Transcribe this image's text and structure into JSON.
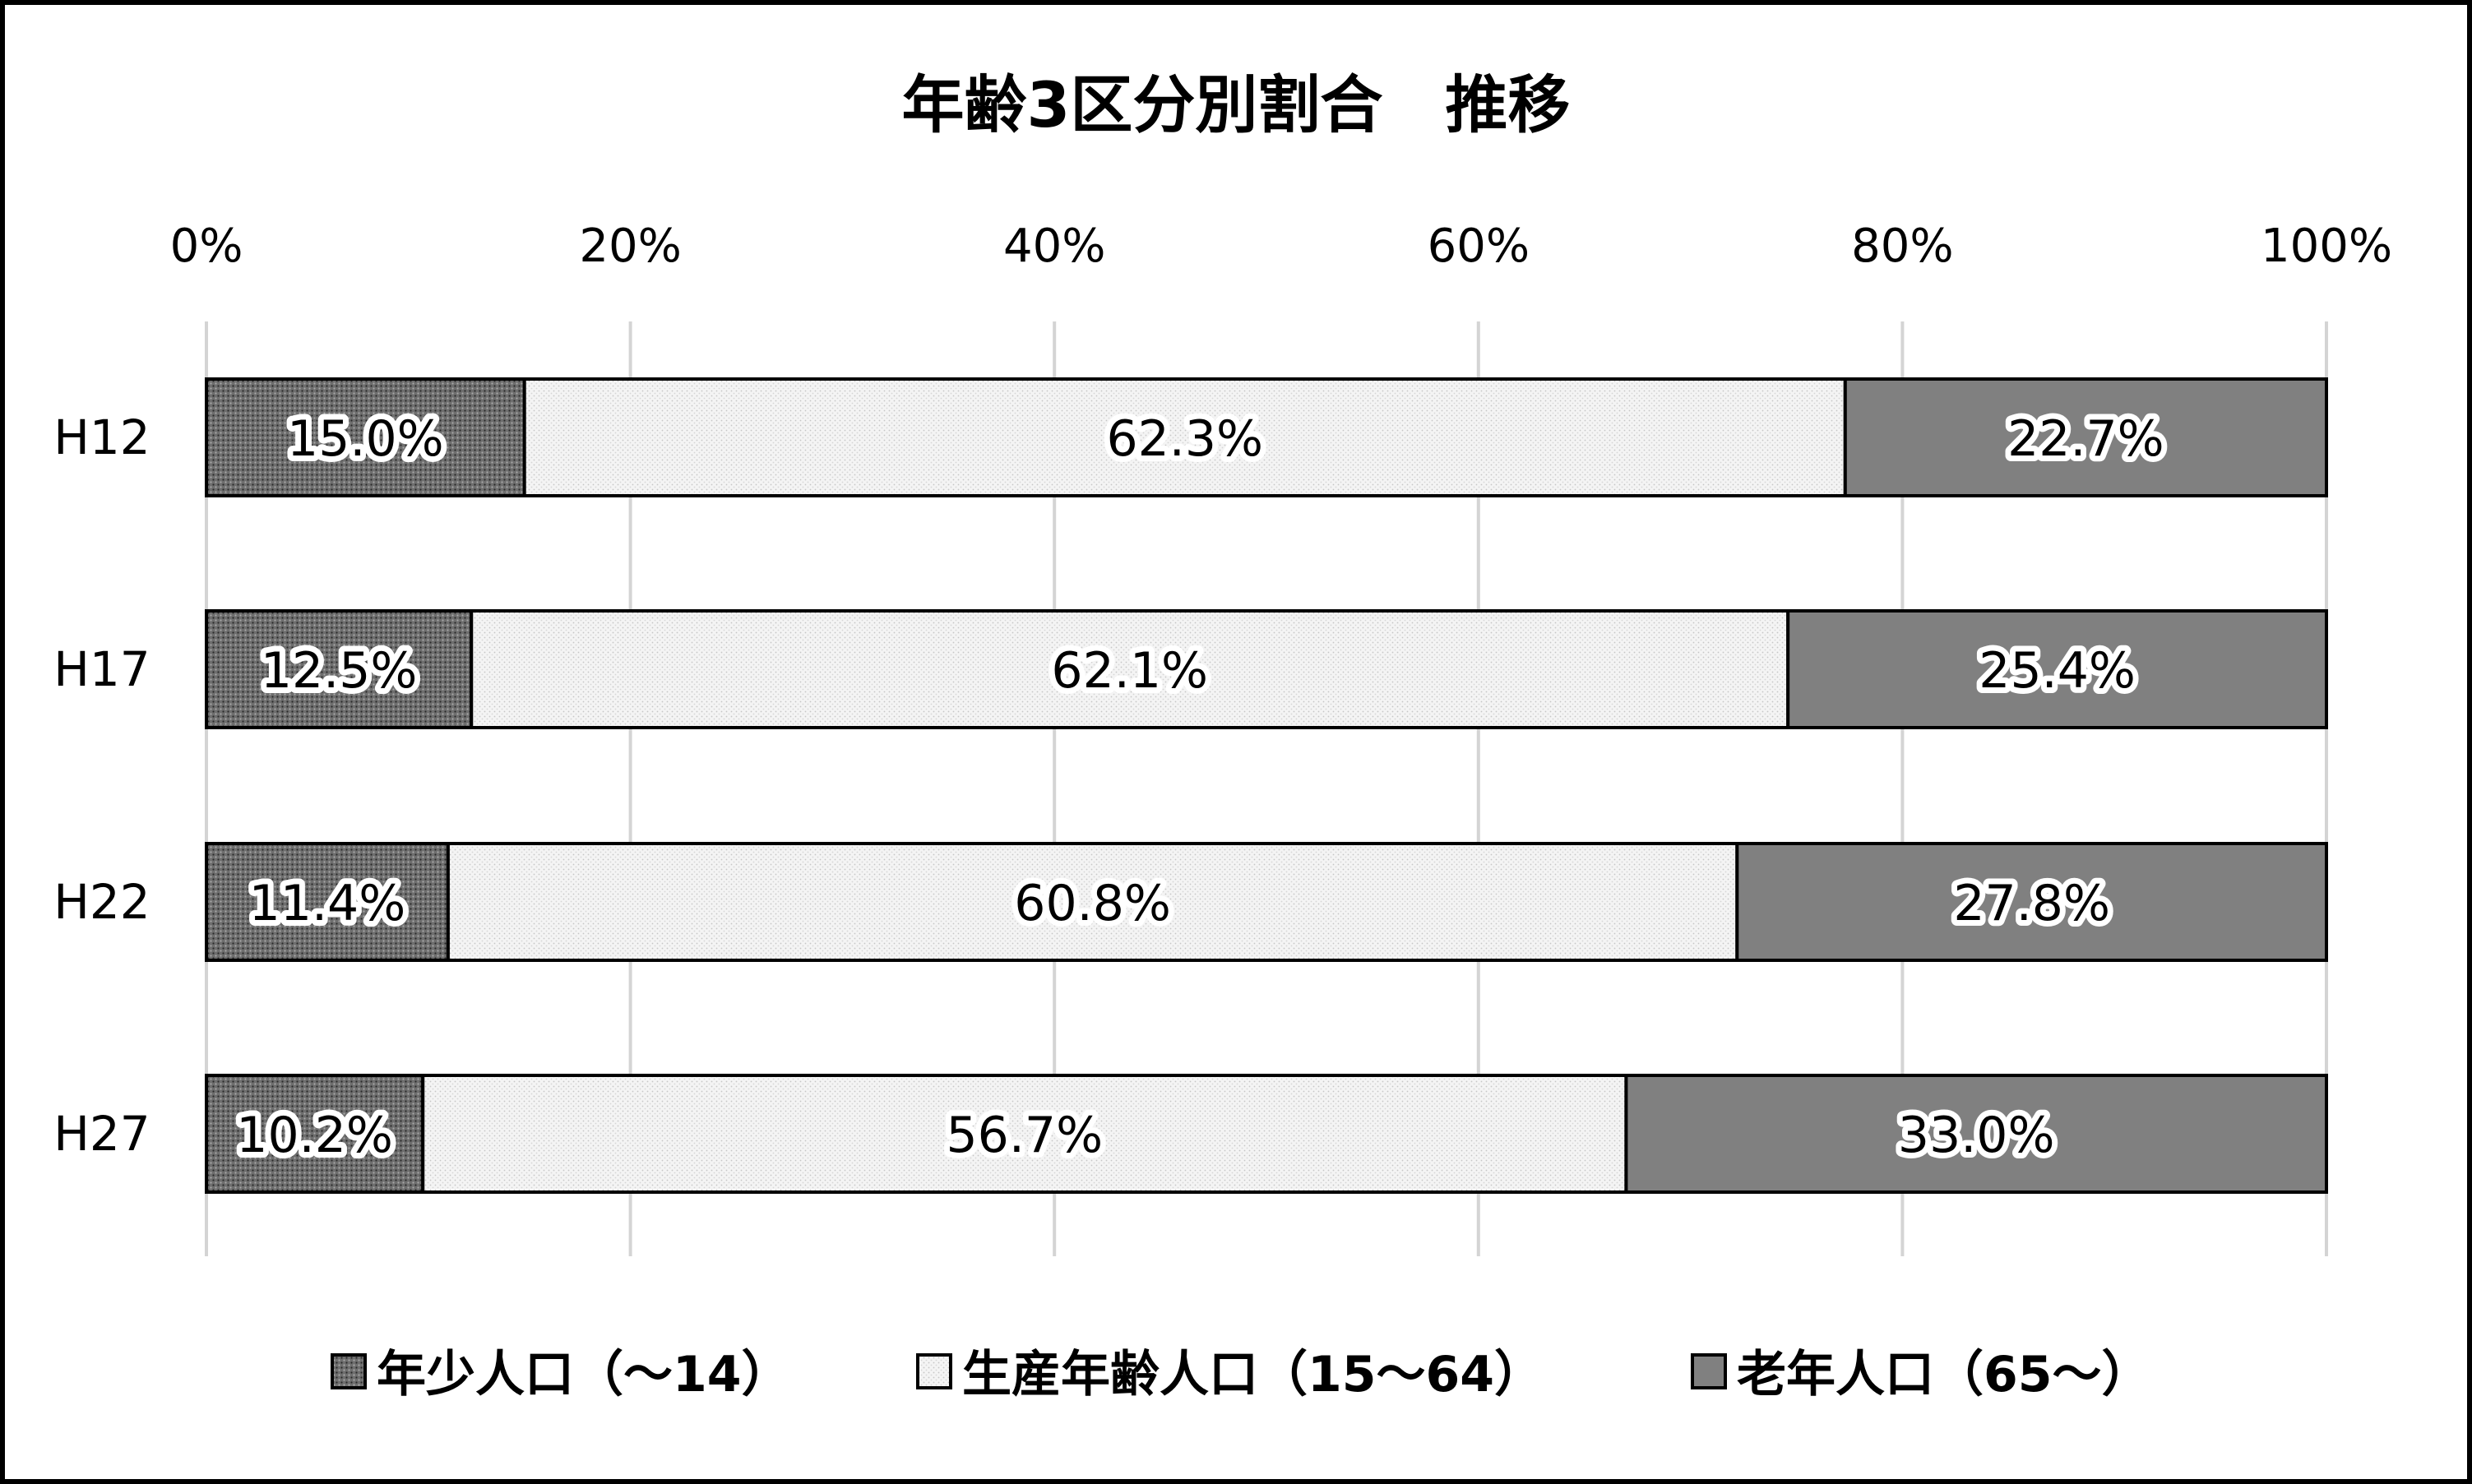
{
  "chart_data": {
    "type": "bar",
    "orientation": "horizontal",
    "stacked": "percent",
    "title": "年齢3区分別割合　推移",
    "categories": [
      "H12",
      "H17",
      "H22",
      "H27"
    ],
    "series": [
      {
        "name": "年少人口（～14）",
        "values": [
          15.0,
          12.5,
          11.4,
          10.2
        ],
        "labels": [
          "15.0%",
          "12.5%",
          "11.4%",
          "10.2%"
        ],
        "color": "#707070",
        "pattern": "dense-dots"
      },
      {
        "name": "生産年齢人口（15～64）",
        "values": [
          62.3,
          62.1,
          60.8,
          56.7
        ],
        "labels": [
          "62.3%",
          "62.1%",
          "60.8%",
          "56.7%"
        ],
        "color": "#f0f0f0",
        "pattern": "light-dots"
      },
      {
        "name": "老年人口（65～）",
        "values": [
          22.7,
          25.4,
          27.8,
          33.0
        ],
        "labels": [
          "22.7%",
          "25.4%",
          "27.8%",
          "33.0%"
        ],
        "color": "#808080",
        "pattern": "solid"
      }
    ],
    "xlim": [
      0,
      100
    ],
    "xticks": [
      "0%",
      "20%",
      "40%",
      "60%",
      "80%",
      "100%"
    ],
    "xaxis_position": "top",
    "grid": true,
    "legend": "bottom"
  }
}
